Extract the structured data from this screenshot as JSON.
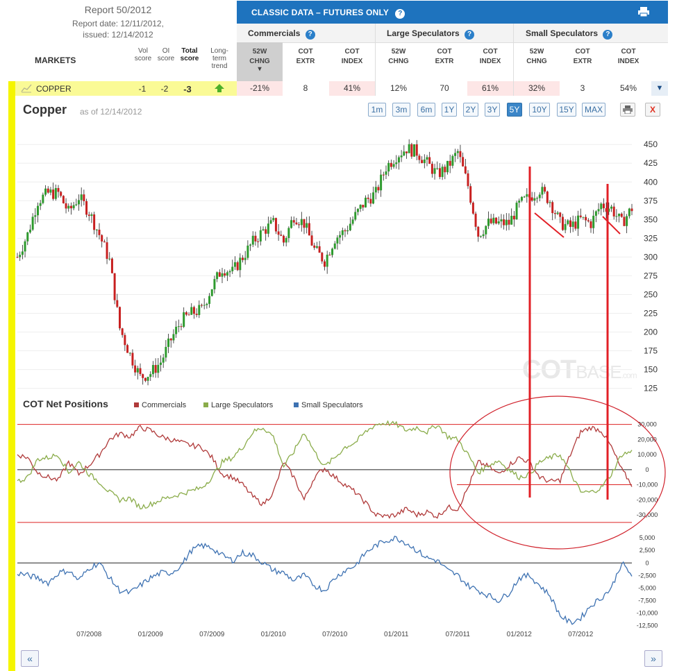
{
  "report": {
    "title": "Report 50/2012",
    "report_date": "Report date: 12/11/2012,",
    "issued": "issued: 12/14/2012"
  },
  "table": {
    "markets_label": "MARKETS",
    "vol_score": "Vol score",
    "oi_score": "OI score",
    "total_score": "Total score",
    "long_term_trend": "Long-term trend",
    "panel_title": "CLASSIC DATA – FUTURES ONLY",
    "groups": [
      "Commercials",
      "Large Speculators",
      "Small Speculators"
    ],
    "sub_headers": [
      {
        "l1": "52W",
        "l2": "CHNG"
      },
      {
        "l1": "COT",
        "l2": "EXTR"
      },
      {
        "l1": "COT",
        "l2": "INDEX"
      },
      {
        "l1": "52W",
        "l2": "CHNG"
      },
      {
        "l1": "COT",
        "l2": "EXTR"
      },
      {
        "l1": "COT",
        "l2": "INDEX"
      },
      {
        "l1": "52W",
        "l2": "CHNG"
      },
      {
        "l1": "COT",
        "l2": "EXTR"
      },
      {
        "l1": "COT",
        "l2": "INDEX"
      }
    ],
    "row": {
      "market": "COPPER",
      "vol": "-1",
      "oi": "-2",
      "total": "-3",
      "values": [
        "-21%",
        "8",
        "41%",
        "12%",
        "70",
        "61%",
        "32%",
        "3",
        "54%"
      ],
      "pink": [
        true,
        false,
        true,
        false,
        false,
        true,
        true,
        false,
        false
      ]
    }
  },
  "chart_header": {
    "title": "Copper",
    "as_of": "as of 12/14/2012",
    "ranges": [
      "1m",
      "3m",
      "6m",
      "1Y",
      "2Y",
      "3Y",
      "5Y",
      "10Y",
      "15Y",
      "MAX"
    ],
    "active_range": "5Y"
  },
  "cot": {
    "title": "COT Net Positions",
    "legend": [
      "Commercials",
      "Large Speculators",
      "Small Speculators"
    ]
  },
  "watermark": {
    "cot": "COT",
    "base": "BASE",
    "com": ".com"
  },
  "colors": {
    "commercials": "#b03a3a",
    "large": "#8aac4a",
    "small": "#3e72b2",
    "up": "#2e9a2e",
    "down": "#c82020",
    "header": "#1e73be"
  },
  "chart_data": [
    {
      "type": "line",
      "title": "Copper",
      "x_ticks": [
        "07/2008",
        "01/2009",
        "07/2009",
        "01/2010",
        "07/2010",
        "01/2011",
        "07/2011",
        "01/2012",
        "07/2012"
      ],
      "y_ticks": [
        125,
        150,
        175,
        200,
        225,
        250,
        275,
        300,
        325,
        350,
        375,
        400,
        425,
        450
      ],
      "ylim": [
        120,
        465
      ],
      "series": [
        {
          "name": "",
          "x": [
            "2007-12",
            "2008-01",
            "2008-02",
            "2008-03",
            "2008-04",
            "2008-05",
            "2008-06",
            "2008-07",
            "2008-08",
            "2008-09",
            "2008-10",
            "2008-11",
            "2008-12",
            "2009-01",
            "2009-02",
            "2009-03",
            "2009-04",
            "2009-05",
            "2009-06",
            "2009-07",
            "2009-08",
            "2009-09",
            "2009-10",
            "2009-11",
            "2009-12",
            "2010-01",
            "2010-02",
            "2010-03",
            "2010-04",
            "2010-05",
            "2010-06",
            "2010-07",
            "2010-08",
            "2010-09",
            "2010-10",
            "2010-11",
            "2010-12",
            "2011-01",
            "2011-02",
            "2011-03",
            "2011-04",
            "2011-05",
            "2011-06",
            "2011-07",
            "2011-08",
            "2011-09",
            "2011-10",
            "2011-11",
            "2011-12",
            "2012-01",
            "2012-02",
            "2012-03",
            "2012-04",
            "2012-05",
            "2012-06",
            "2012-07",
            "2012-08",
            "2012-09",
            "2012-10",
            "2012-11",
            "2012-12"
          ],
          "values": [
            300,
            330,
            375,
            385,
            385,
            360,
            380,
            360,
            330,
            295,
            205,
            170,
            140,
            145,
            160,
            190,
            215,
            225,
            230,
            260,
            285,
            280,
            300,
            320,
            335,
            345,
            320,
            355,
            345,
            310,
            295,
            325,
            335,
            355,
            375,
            385,
            420,
            435,
            445,
            440,
            425,
            410,
            420,
            440,
            395,
            330,
            345,
            345,
            345,
            370,
            380,
            390,
            375,
            345,
            340,
            350,
            345,
            370,
            365,
            345,
            365
          ]
        }
      ]
    },
    {
      "type": "line",
      "title": "COT Net Positions",
      "x_ticks": [
        "07/2008",
        "01/2009",
        "07/2009",
        "01/2010",
        "07/2010",
        "01/2011",
        "07/2011",
        "01/2012",
        "07/2012"
      ],
      "y_ticks": [
        -30000,
        -20000,
        -10000,
        0,
        10000,
        20000,
        30000
      ],
      "y_tick_labels": [
        "-30,000",
        "-20,000",
        "-10,000",
        "0",
        "10,000",
        "20,000",
        "30,000"
      ],
      "ylim": [
        -36000,
        34000
      ],
      "x": [
        "2007-12",
        "2008-01",
        "2008-02",
        "2008-03",
        "2008-04",
        "2008-05",
        "2008-06",
        "2008-07",
        "2008-08",
        "2008-09",
        "2008-10",
        "2008-11",
        "2008-12",
        "2009-01",
        "2009-02",
        "2009-03",
        "2009-04",
        "2009-05",
        "2009-06",
        "2009-07",
        "2009-08",
        "2009-09",
        "2009-10",
        "2009-11",
        "2009-12",
        "2010-01",
        "2010-02",
        "2010-03",
        "2010-04",
        "2010-05",
        "2010-06",
        "2010-07",
        "2010-08",
        "2010-09",
        "2010-10",
        "2010-11",
        "2010-12",
        "2011-01",
        "2011-02",
        "2011-03",
        "2011-04",
        "2011-05",
        "2011-06",
        "2011-07",
        "2011-08",
        "2011-09",
        "2011-10",
        "2011-11",
        "2011-12",
        "2012-01",
        "2012-02",
        "2012-03",
        "2012-04",
        "2012-05",
        "2012-06",
        "2012-07",
        "2012-08",
        "2012-09",
        "2012-10",
        "2012-11",
        "2012-12"
      ],
      "series": [
        {
          "name": "Commercials",
          "values": [
            10000,
            8000,
            -2000,
            -5000,
            -7000,
            5000,
            -3000,
            3000,
            10000,
            20000,
            24000,
            22000,
            28000,
            26000,
            22000,
            20000,
            18000,
            16000,
            15000,
            8000,
            -3000,
            -5000,
            -10000,
            -18000,
            -23000,
            -15000,
            5000,
            -5000,
            -20000,
            -5000,
            1000,
            -5000,
            -10000,
            -15000,
            -22000,
            -30000,
            -31000,
            -30000,
            -26000,
            -30000,
            -28000,
            -31000,
            -25000,
            -26000,
            -12000,
            5000,
            2000,
            -3000,
            3000,
            8000,
            5000,
            -5000,
            -8000,
            -7000,
            10000,
            25000,
            28000,
            26000,
            15000,
            0,
            -10000
          ]
        },
        {
          "name": "Large Speculators",
          "values": [
            -8000,
            -5000,
            7000,
            8000,
            10000,
            -2000,
            5000,
            -3000,
            -8000,
            -15000,
            -20000,
            -19000,
            -25000,
            -23000,
            -20000,
            -18000,
            -16000,
            -14000,
            -12000,
            -5000,
            5000,
            8000,
            15000,
            25000,
            28000,
            22000,
            2000,
            12000,
            25000,
            12000,
            2000,
            8000,
            15000,
            18000,
            25000,
            30000,
            31000,
            30000,
            26000,
            28000,
            25000,
            30000,
            22000,
            20000,
            10000,
            -2000,
            3000,
            6000,
            0,
            -5000,
            -3000,
            5000,
            8000,
            10000,
            -2000,
            -15000,
            -15000,
            -12000,
            -3000,
            10000,
            12000
          ]
        }
      ]
    },
    {
      "type": "line",
      "title": "",
      "x_ticks": [
        "07/2008",
        "01/2009",
        "07/2009",
        "01/2010",
        "07/2010",
        "01/2011",
        "07/2011",
        "01/2012",
        "07/2012"
      ],
      "y_ticks": [
        -12500,
        -10000,
        -7500,
        -5000,
        -2500,
        0,
        2500,
        5000
      ],
      "y_tick_labels": [
        "-12,500",
        "-10,000",
        "-7,500",
        "-5,000",
        "-2,500",
        "0",
        "2,500",
        "5,000"
      ],
      "ylim": [
        -13000,
        6000
      ],
      "x": [
        "2007-12",
        "2008-01",
        "2008-02",
        "2008-03",
        "2008-04",
        "2008-05",
        "2008-06",
        "2008-07",
        "2008-08",
        "2008-09",
        "2008-10",
        "2008-11",
        "2008-12",
        "2009-01",
        "2009-02",
        "2009-03",
        "2009-04",
        "2009-05",
        "2009-06",
        "2009-07",
        "2009-08",
        "2009-09",
        "2009-10",
        "2009-11",
        "2009-12",
        "2010-01",
        "2010-02",
        "2010-03",
        "2010-04",
        "2010-05",
        "2010-06",
        "2010-07",
        "2010-08",
        "2010-09",
        "2010-10",
        "2010-11",
        "2010-12",
        "2011-01",
        "2011-02",
        "2011-03",
        "2011-04",
        "2011-05",
        "2011-06",
        "2011-07",
        "2011-08",
        "2011-09",
        "2011-10",
        "2011-11",
        "2011-12",
        "2012-01",
        "2012-02",
        "2012-03",
        "2012-04",
        "2012-05",
        "2012-06",
        "2012-07",
        "2012-08",
        "2012-09",
        "2012-10",
        "2012-11",
        "2012-12"
      ],
      "series": [
        {
          "name": "Small Speculators",
          "values": [
            -2000,
            -2500,
            -3000,
            -4000,
            -2000,
            -1500,
            -3500,
            -1000,
            0,
            -3000,
            -5500,
            -6000,
            -4500,
            -3000,
            -2000,
            -2000,
            -500,
            2500,
            3500,
            3000,
            1500,
            500,
            2000,
            1500,
            0,
            -1500,
            -2000,
            -3500,
            -2500,
            -4500,
            -5500,
            -3000,
            -1500,
            -500,
            2000,
            3500,
            4500,
            5000,
            4000,
            2500,
            1000,
            500,
            -1500,
            -2500,
            -4500,
            -5500,
            -6500,
            -7500,
            -6000,
            -3000,
            -2500,
            -4500,
            -6500,
            -10500,
            -12000,
            -11000,
            -8500,
            -7000,
            -5000,
            0,
            -2500
          ]
        }
      ]
    }
  ]
}
